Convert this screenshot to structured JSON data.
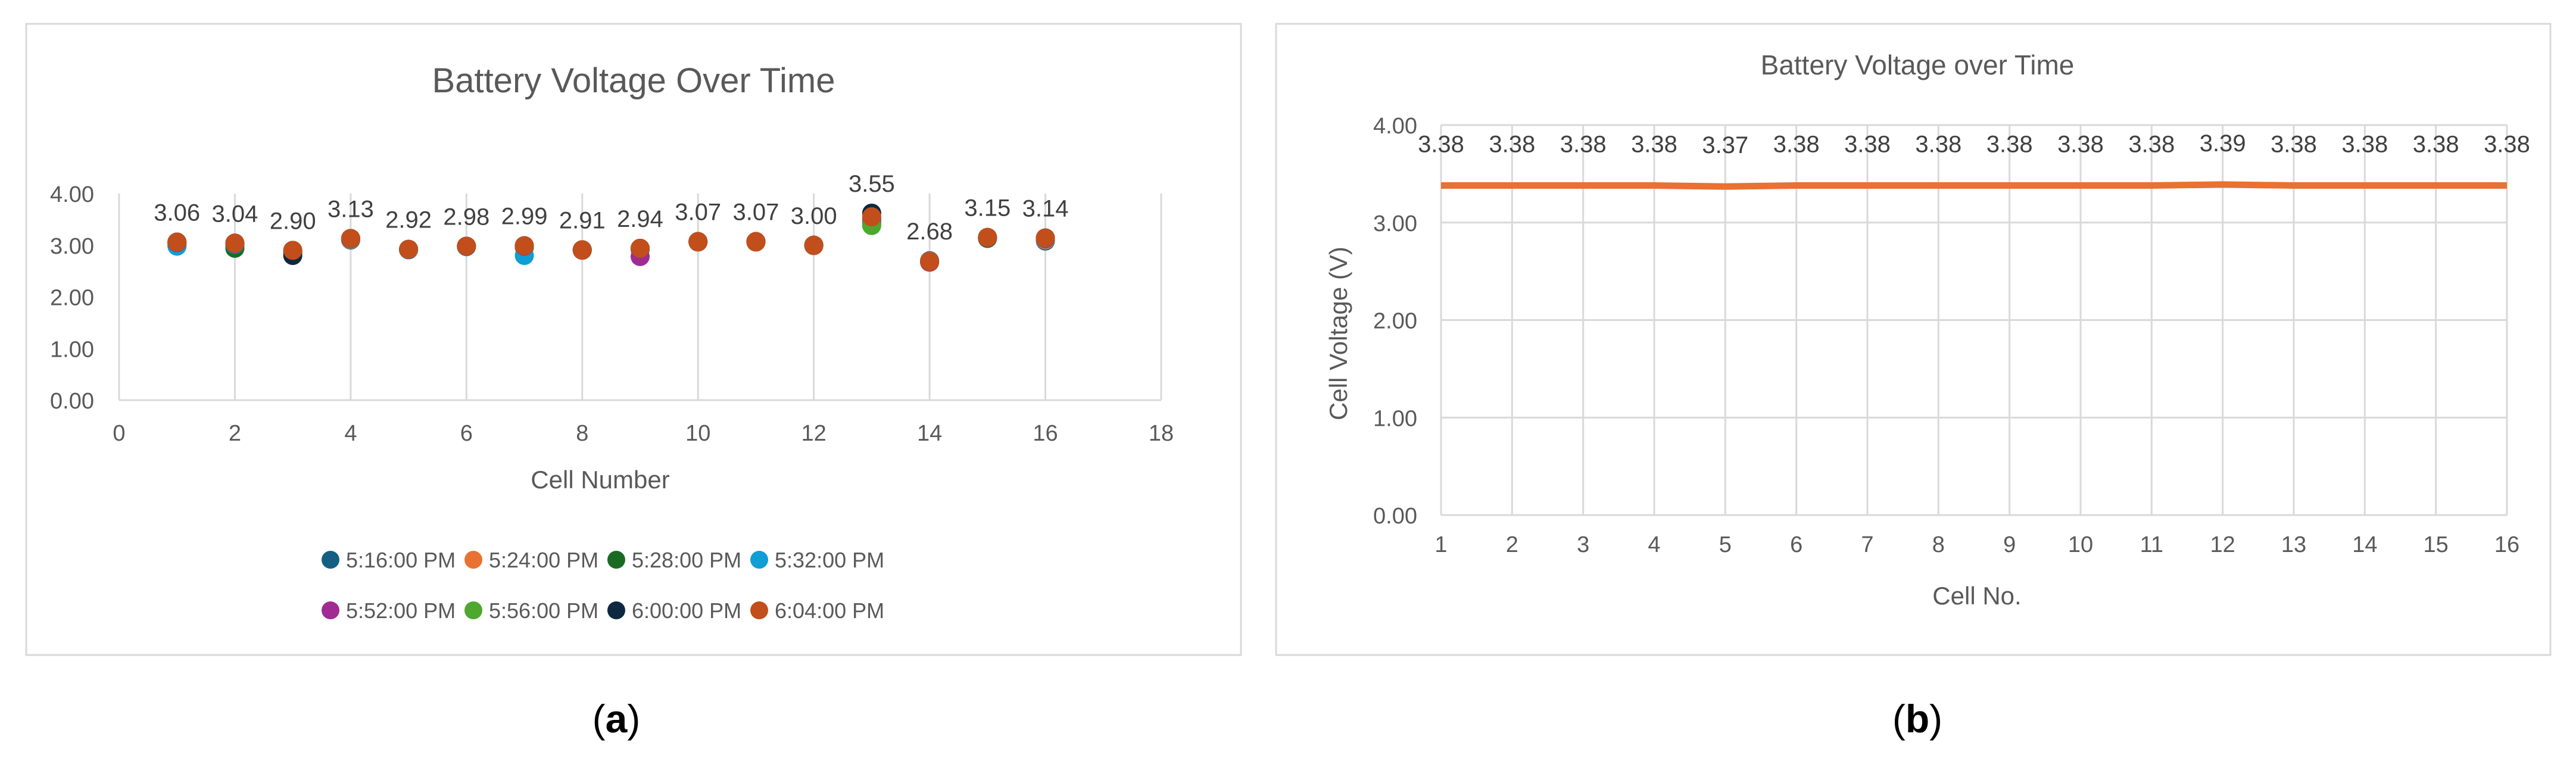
{
  "panels": [
    {
      "caption_letter": "a",
      "chart": {
        "type": "scatter",
        "title": "Battery Voltage Over Time",
        "xlabel": "Cell Number",
        "ylabel": "",
        "xlim": [
          0,
          18
        ],
        "ylim": [
          0,
          4
        ],
        "x_ticks": [
          0,
          2,
          4,
          6,
          8,
          10,
          12,
          14,
          16,
          18
        ],
        "y_ticks": [
          "0.00",
          "1.00",
          "2.00",
          "3.00",
          "4.00"
        ],
        "grid": "vertical",
        "legend_position": "bottom",
        "categories": [
          1,
          2,
          3,
          4,
          5,
          6,
          7,
          8,
          9,
          10,
          11,
          12,
          13,
          14,
          15,
          16
        ],
        "data_labels": [
          "3.06",
          "3.04",
          "2.90",
          "3.13",
          "2.92",
          "2.98",
          "2.99",
          "2.91",
          "2.94",
          "3.07",
          "3.07",
          "3.00",
          "3.55",
          "2.68",
          "3.15",
          "3.14"
        ],
        "series": [
          {
            "name": "5:16:00 PM",
            "color": "#156082",
            "values": [
              3.0,
              2.98,
              2.86,
              3.1,
              2.92,
              2.98,
              2.96,
              2.9,
              2.92,
              3.06,
              3.06,
              2.99,
              3.45,
              2.7,
              3.13,
              3.08
            ]
          },
          {
            "name": "5:24:00 PM",
            "color": "#e97132",
            "values": [
              3.02,
              3.0,
              2.87,
              3.11,
              2.92,
              2.98,
              2.97,
              2.9,
              2.92,
              3.06,
              3.06,
              2.99,
              3.48,
              2.69,
              3.14,
              3.1
            ]
          },
          {
            "name": "5:28:00 PM",
            "color": "#196b24",
            "values": [
              3.04,
              2.94,
              2.84,
              3.12,
              2.91,
              2.98,
              2.98,
              2.91,
              2.93,
              3.07,
              3.07,
              3.0,
              3.42,
              2.68,
              3.14,
              3.12
            ]
          },
          {
            "name": "5:32:00 PM",
            "color": "#0f9ed5",
            "values": [
              2.98,
              3.02,
              2.88,
              3.12,
              2.91,
              2.97,
              2.8,
              2.91,
              2.93,
              3.07,
              3.07,
              3.0,
              3.5,
              2.68,
              3.15,
              3.12
            ]
          },
          {
            "name": "5:52:00 PM",
            "color": "#a02b93",
            "values": [
              3.05,
              3.03,
              2.89,
              3.13,
              2.92,
              2.98,
              2.98,
              2.91,
              2.78,
              3.07,
              3.07,
              3.0,
              3.52,
              2.67,
              3.15,
              3.13
            ]
          },
          {
            "name": "5:56:00 PM",
            "color": "#4ea72e",
            "values": [
              3.06,
              3.04,
              2.9,
              3.13,
              2.92,
              2.98,
              2.99,
              2.91,
              2.94,
              3.07,
              3.07,
              3.0,
              3.38,
              2.68,
              3.15,
              3.14
            ]
          },
          {
            "name": "6:00:00 PM",
            "color": "#0e2841",
            "values": [
              3.06,
              3.04,
              2.8,
              3.13,
              2.92,
              2.98,
              2.99,
              2.91,
              2.94,
              3.07,
              3.07,
              3.0,
              3.62,
              2.68,
              3.15,
              3.14
            ]
          },
          {
            "name": "6:04:00 PM",
            "color": "#c24e1c",
            "values": [
              3.06,
              3.04,
              2.9,
              3.13,
              2.92,
              2.98,
              2.99,
              2.91,
              2.94,
              3.07,
              3.07,
              3.0,
              3.55,
              2.68,
              3.15,
              3.14
            ]
          }
        ]
      }
    },
    {
      "caption_letter": "b",
      "chart": {
        "type": "line",
        "title": "Battery Voltage over Time",
        "xlabel": "Cell No.",
        "ylabel": "Cell Voltage (V)",
        "ylim": [
          0,
          4
        ],
        "y_ticks": [
          "0.00",
          "1.00",
          "2.00",
          "3.00",
          "4.00"
        ],
        "grid": "both",
        "categories": [
          1,
          2,
          3,
          4,
          5,
          6,
          7,
          8,
          9,
          10,
          11,
          12,
          13,
          14,
          15,
          16
        ],
        "values": [
          3.38,
          3.38,
          3.38,
          3.38,
          3.37,
          3.38,
          3.38,
          3.38,
          3.38,
          3.38,
          3.38,
          3.39,
          3.38,
          3.38,
          3.38,
          3.38
        ],
        "data_labels": [
          "3.38",
          "3.38",
          "3.38",
          "3.38",
          "3.37",
          "3.38",
          "3.38",
          "3.38",
          "3.38",
          "3.38",
          "3.38",
          "3.39",
          "3.38",
          "3.38",
          "3.38",
          "3.38"
        ],
        "color": "#e97132"
      }
    }
  ],
  "chart_data": [
    {
      "type": "scatter",
      "title": "Battery Voltage Over Time",
      "xlabel": "Cell Number",
      "ylabel": "",
      "xlim": [
        0,
        18
      ],
      "ylim": [
        0,
        4
      ],
      "legend": "bottom",
      "x": [
        1,
        2,
        3,
        4,
        5,
        6,
        7,
        8,
        9,
        10,
        11,
        12,
        13,
        14,
        15,
        16
      ],
      "series": [
        {
          "name": "5:16:00 PM",
          "values": [
            3.0,
            2.98,
            2.86,
            3.1,
            2.92,
            2.98,
            2.96,
            2.9,
            2.92,
            3.06,
            3.06,
            2.99,
            3.45,
            2.7,
            3.13,
            3.08
          ]
        },
        {
          "name": "5:24:00 PM",
          "values": [
            3.02,
            3.0,
            2.87,
            3.11,
            2.92,
            2.98,
            2.97,
            2.9,
            2.92,
            3.06,
            3.06,
            2.99,
            3.48,
            2.69,
            3.14,
            3.1
          ]
        },
        {
          "name": "5:28:00 PM",
          "values": [
            3.04,
            2.94,
            2.84,
            3.12,
            2.91,
            2.98,
            2.98,
            2.91,
            2.93,
            3.07,
            3.07,
            3.0,
            3.42,
            2.68,
            3.14,
            3.12
          ]
        },
        {
          "name": "5:32:00 PM",
          "values": [
            2.98,
            3.02,
            2.88,
            3.12,
            2.91,
            2.97,
            2.8,
            2.91,
            2.93,
            3.07,
            3.07,
            3.0,
            3.5,
            2.68,
            3.15,
            3.12
          ]
        },
        {
          "name": "5:52:00 PM",
          "values": [
            3.05,
            3.03,
            2.89,
            3.13,
            2.92,
            2.98,
            2.98,
            2.91,
            2.78,
            3.07,
            3.07,
            3.0,
            3.52,
            2.67,
            3.15,
            3.13
          ]
        },
        {
          "name": "5:56:00 PM",
          "values": [
            3.06,
            3.04,
            2.9,
            3.13,
            2.92,
            2.98,
            2.99,
            2.91,
            2.94,
            3.07,
            3.07,
            3.0,
            3.38,
            2.68,
            3.15,
            3.14
          ]
        },
        {
          "name": "6:00:00 PM",
          "values": [
            3.06,
            3.04,
            2.8,
            3.13,
            2.92,
            2.98,
            2.99,
            2.91,
            2.94,
            3.07,
            3.07,
            3.0,
            3.62,
            2.68,
            3.15,
            3.14
          ]
        },
        {
          "name": "6:04:00 PM",
          "values": [
            3.06,
            3.04,
            2.9,
            3.13,
            2.92,
            2.98,
            2.99,
            2.91,
            2.94,
            3.07,
            3.07,
            3.0,
            3.55,
            2.68,
            3.15,
            3.14
          ]
        }
      ]
    },
    {
      "type": "line",
      "title": "Battery Voltage over Time",
      "xlabel": "Cell No.",
      "ylabel": "Cell Voltage (V)",
      "ylim": [
        0,
        4
      ],
      "categories": [
        1,
        2,
        3,
        4,
        5,
        6,
        7,
        8,
        9,
        10,
        11,
        12,
        13,
        14,
        15,
        16
      ],
      "values": [
        3.38,
        3.38,
        3.38,
        3.38,
        3.37,
        3.38,
        3.38,
        3.38,
        3.38,
        3.38,
        3.38,
        3.39,
        3.38,
        3.38,
        3.38,
        3.38
      ]
    }
  ]
}
